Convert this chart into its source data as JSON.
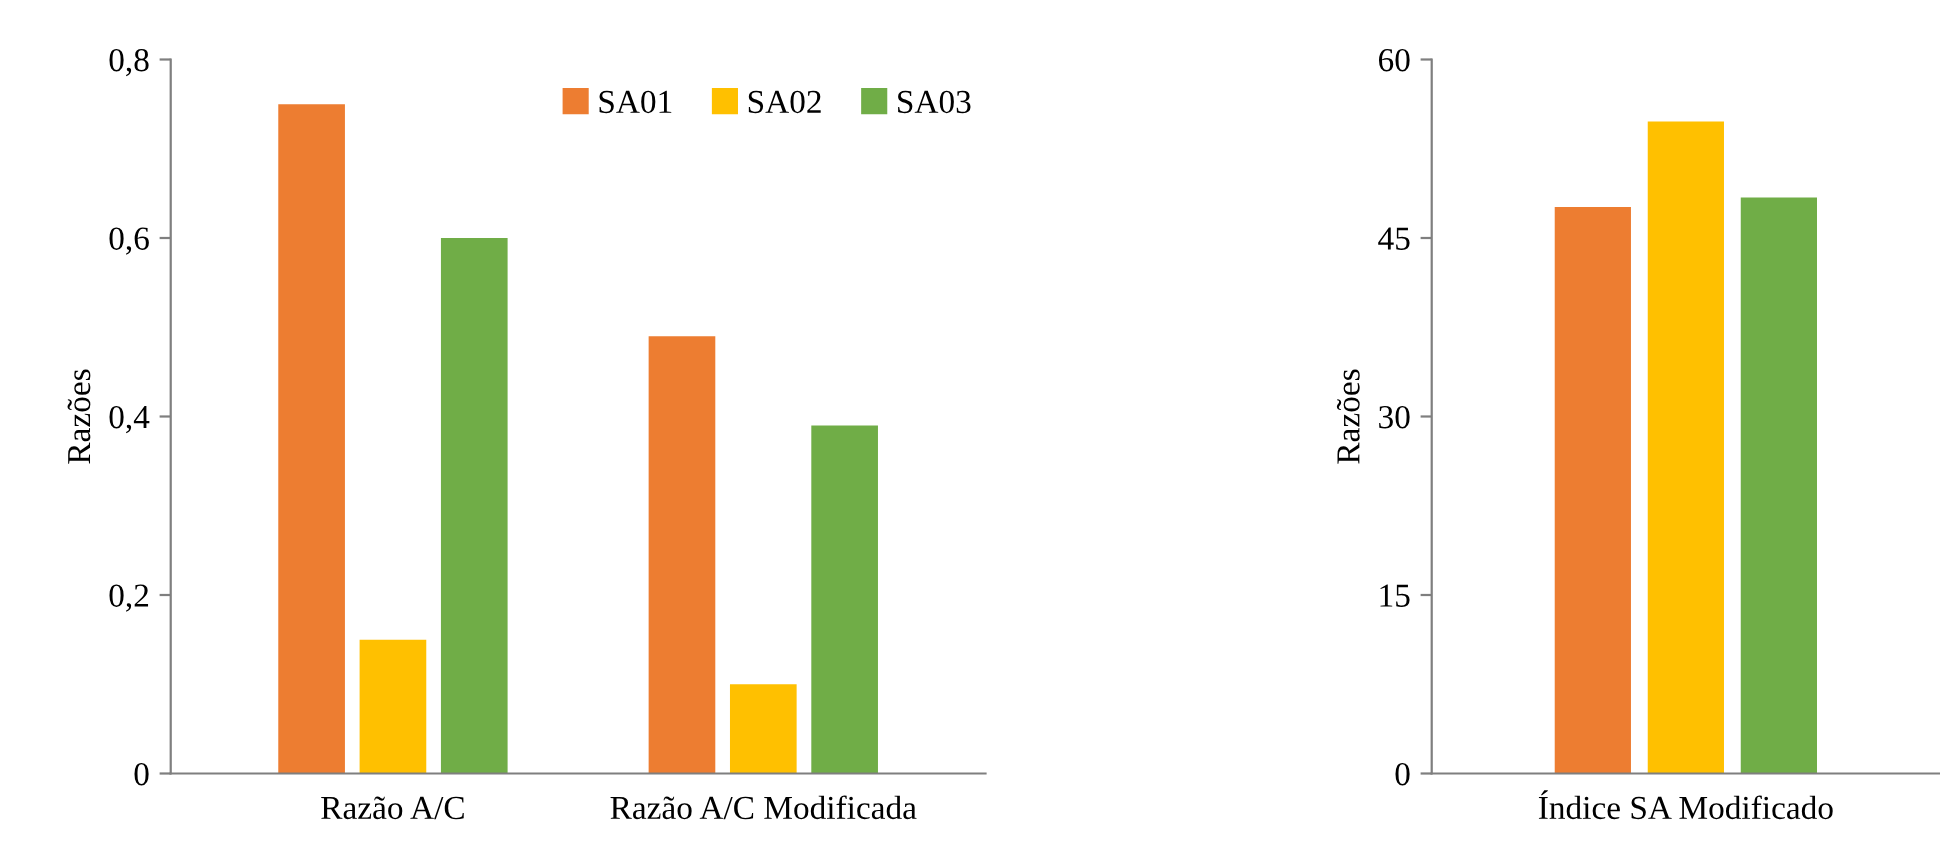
{
  "chart_data": [
    {
      "type": "bar",
      "ylabel": "Razões",
      "categories": [
        "Razão A/C",
        "Razão A/C Modificada"
      ],
      "ylim": [
        0,
        0.8
      ],
      "yticks": [
        {
          "value": 0,
          "label": "0"
        },
        {
          "value": 0.2,
          "label": "0,2"
        },
        {
          "value": 0.4,
          "label": "0,4"
        },
        {
          "value": 0.6,
          "label": "0,6"
        },
        {
          "value": 0.8,
          "label": "0,8"
        }
      ],
      "grid": false,
      "legend": "top right",
      "series": [
        {
          "name": "SA01",
          "color": "#ed7d31",
          "values": [
            0.75,
            0.49
          ]
        },
        {
          "name": "SA02",
          "color": "#ffc000",
          "values": [
            0.15,
            0.1
          ]
        },
        {
          "name": "SA03",
          "color": "#70ad47",
          "values": [
            0.6,
            0.39
          ]
        }
      ]
    },
    {
      "type": "bar",
      "ylabel": "Razões",
      "categories": [
        "Índice SA Modificado"
      ],
      "ylim": [
        0,
        60
      ],
      "yticks": [
        0,
        15,
        30,
        45,
        60
      ],
      "grid": false,
      "series": [
        {
          "color": "#ed7d31",
          "values": [
            47.6
          ]
        },
        {
          "color": "#ffc000",
          "values": [
            54.8
          ]
        },
        {
          "color": "#70ad47",
          "values": [
            48.4
          ]
        }
      ]
    }
  ]
}
